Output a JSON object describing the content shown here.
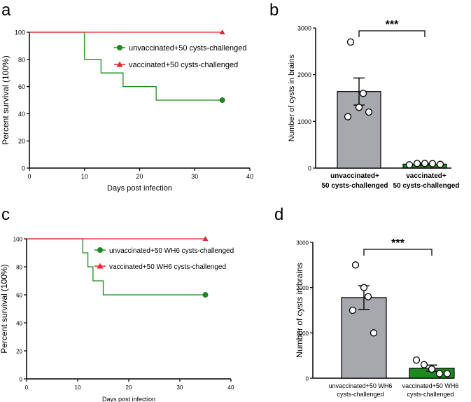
{
  "panel_labels": [
    "a",
    "b",
    "c",
    "d"
  ],
  "colors": {
    "green": "#1e8a1e",
    "red": "#e8262d",
    "gray": "#a7a7ae",
    "axis": "#000000"
  },
  "chart_data": [
    {
      "id": "a",
      "type": "line",
      "xlabel": "Days post infection",
      "ylabel": "Percent survival (100%)",
      "xlim": [
        0,
        40
      ],
      "ylim": [
        0,
        100
      ],
      "xticks": [
        0,
        10,
        20,
        30,
        40
      ],
      "yticks": [
        0,
        20,
        40,
        60,
        80,
        100
      ],
      "series": [
        {
          "name": "unvaccinated+50 cysts-challenged",
          "color": "#1e8a1e",
          "marker": "circle",
          "x": [
            0,
            10,
            13,
            17,
            23,
            35
          ],
          "y": [
            100,
            80,
            70,
            60,
            50,
            50
          ]
        },
        {
          "name": "vaccinated+50 cysts-challenged",
          "color": "#e8262d",
          "marker": "triangle",
          "x": [
            0,
            35
          ],
          "y": [
            100,
            100
          ]
        }
      ]
    },
    {
      "id": "b",
      "type": "bar",
      "ylabel": "Number of cysts in brains",
      "ylim": [
        0,
        3000
      ],
      "yticks": [
        0,
        1000,
        2000,
        3000
      ],
      "categories": [
        {
          "line1": "unvaccinated+",
          "line2": "50 cysts-challenged"
        },
        {
          "line1": "vaccinated+",
          "line2": "50 cysts-challenged"
        }
      ],
      "values": [
        1640,
        85
      ],
      "errors": [
        290,
        20
      ],
      "points": [
        [
          2700,
          1300,
          1600,
          1100,
          1200
        ],
        [
          70,
          100,
          100,
          95,
          80
        ]
      ],
      "bar_colors": [
        "#a7a7ae",
        "#1e8a1e"
      ],
      "significance": "***"
    },
    {
      "id": "c",
      "type": "line",
      "xlabel": "Days post infection",
      "ylabel": "Percent survival (100%)",
      "xlim": [
        0,
        40
      ],
      "ylim": [
        0,
        100
      ],
      "xticks": [
        0,
        10,
        20,
        30,
        40
      ],
      "yticks": [
        0,
        20,
        40,
        60,
        80,
        100
      ],
      "series": [
        {
          "name": "unvaccinated+50 WH6 cysts-challenged",
          "color": "#1e8a1e",
          "marker": "circle",
          "x": [
            0,
            11,
            12,
            13,
            15,
            35
          ],
          "y": [
            100,
            90,
            80,
            70,
            60,
            60
          ]
        },
        {
          "name": "vaccinated+50 WH6 cysts-challenged",
          "color": "#e8262d",
          "marker": "triangle",
          "x": [
            0,
            35
          ],
          "y": [
            100,
            100
          ]
        }
      ]
    },
    {
      "id": "d",
      "type": "bar",
      "ylabel": "Number of cysts in brains",
      "ylim": [
        0,
        3000
      ],
      "yticks": [
        0,
        1000,
        2000,
        3000
      ],
      "categories": [
        {
          "line1": "unvaccinated+50 WH6",
          "line2": "cysts-challenged"
        },
        {
          "line1": "vaccinated+50 WH6",
          "line2": "cysts-challenged"
        }
      ],
      "values": [
        1780,
        220
      ],
      "errors": [
        260,
        70
      ],
      "points": [
        [
          2500,
          2000,
          1800,
          1500,
          1000
        ],
        [
          400,
          300,
          200,
          100,
          100
        ]
      ],
      "bar_colors": [
        "#a7a7ae",
        "#1e8a1e"
      ],
      "significance": "***"
    }
  ]
}
